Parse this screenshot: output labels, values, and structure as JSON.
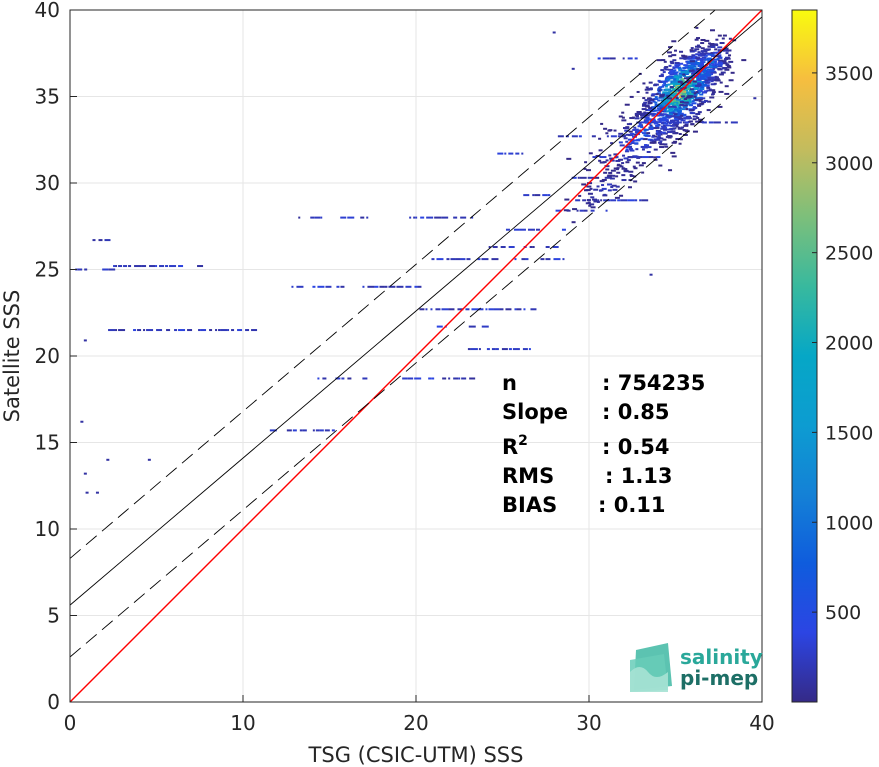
{
  "chart_data": {
    "type": "heatmap",
    "xlabel": "TSG (CSIC-UTM) SSS",
    "ylabel": "Satellite SSS",
    "xlim": [
      0,
      40
    ],
    "ylim": [
      0,
      40
    ],
    "x_ticks": [
      0,
      10,
      20,
      30,
      40
    ],
    "y_ticks": [
      0,
      5,
      10,
      15,
      20,
      25,
      30,
      35,
      40
    ],
    "grid": true,
    "colorbar": {
      "range": [
        0,
        3850
      ],
      "ticks": [
        500,
        1000,
        1500,
        2000,
        2500,
        3000,
        3500
      ],
      "colormap": "parula"
    },
    "lines": [
      {
        "kind": "identity",
        "color": "#ff0000",
        "slope": 1.0,
        "intercept": 0.0,
        "style": "solid"
      },
      {
        "kind": "regression",
        "color": "#000000",
        "slope": 0.85,
        "intercept": 5.6,
        "style": "solid"
      },
      {
        "kind": "regression-upper",
        "color": "#000000",
        "slope": 0.85,
        "intercept": 8.3,
        "style": "dashed"
      },
      {
        "kind": "regression-lower",
        "color": "#000000",
        "slope": 0.85,
        "intercept": 2.6,
        "style": "dashed"
      }
    ],
    "density_clusters": [
      {
        "x": 35.2,
        "y": 35.4,
        "sx": 1.1,
        "sy": 1.5,
        "n": 900,
        "peak": 3700
      },
      {
        "x": 33.2,
        "y": 33.0,
        "sx": 1.5,
        "sy": 1.3,
        "n": 260,
        "peak": 800
      },
      {
        "x": 36.8,
        "y": 36.8,
        "sx": 0.7,
        "sy": 1.0,
        "n": 160,
        "peak": 1200
      },
      {
        "x": 31.0,
        "y": 29.8,
        "sx": 1.0,
        "sy": 0.7,
        "n": 60,
        "peak": 300
      }
    ],
    "streaks": [
      {
        "x0": 0.3,
        "x1": 2.3,
        "y": 25.0
      },
      {
        "x0": 1.3,
        "x1": 2.3,
        "y": 26.7
      },
      {
        "x0": 2.2,
        "x1": 7.8,
        "y": 25.2
      },
      {
        "x0": 2.2,
        "x1": 10.5,
        "y": 21.5
      },
      {
        "x0": 12.5,
        "x1": 17.2,
        "y": 28.0
      },
      {
        "x0": 19.2,
        "x1": 23.2,
        "y": 28.0
      },
      {
        "x0": 12.8,
        "x1": 20.2,
        "y": 24.0
      },
      {
        "x0": 10.8,
        "x1": 15.2,
        "y": 15.7
      },
      {
        "x0": 14.3,
        "x1": 17.2,
        "y": 18.7
      },
      {
        "x0": 19.2,
        "x1": 23.5,
        "y": 18.7
      },
      {
        "x0": 20.2,
        "x1": 29.2,
        "y": 25.6
      },
      {
        "x0": 20.2,
        "x1": 26.7,
        "y": 22.7
      },
      {
        "x0": 21.2,
        "x1": 24.2,
        "y": 21.7
      },
      {
        "x0": 23.0,
        "x1": 26.7,
        "y": 20.4
      },
      {
        "x0": 26.2,
        "x1": 27.7,
        "y": 29.3
      },
      {
        "x0": 24.2,
        "x1": 28.2,
        "y": 26.3
      },
      {
        "x0": 25.2,
        "x1": 28.5,
        "y": 27.3
      },
      {
        "x0": 27.2,
        "x1": 31.2,
        "y": 28.4
      },
      {
        "x0": 29.2,
        "x1": 33.2,
        "y": 29.0
      },
      {
        "x0": 24.7,
        "x1": 26.3,
        "y": 31.7
      },
      {
        "x0": 28.2,
        "x1": 32.2,
        "y": 32.7
      },
      {
        "x0": 30.5,
        "x1": 32.8,
        "y": 37.2
      },
      {
        "x0": 30.2,
        "x1": 34.0,
        "y": 31.5
      },
      {
        "x0": 29.0,
        "x1": 31.5,
        "y": 30.3
      },
      {
        "x0": 34.5,
        "x1": 38.5,
        "y": 33.5
      }
    ],
    "isolated_points": [
      {
        "x": 0.6,
        "y": 16.2
      },
      {
        "x": 0.8,
        "y": 13.2
      },
      {
        "x": 0.9,
        "y": 12.1
      },
      {
        "x": 1.5,
        "y": 12.1
      },
      {
        "x": 2.1,
        "y": 14.0
      },
      {
        "x": 4.5,
        "y": 14.0
      },
      {
        "x": 0.8,
        "y": 20.9
      },
      {
        "x": 33.5,
        "y": 24.7
      },
      {
        "x": 29.0,
        "y": 36.6
      },
      {
        "x": 27.9,
        "y": 38.7
      },
      {
        "x": 39.5,
        "y": 34.9
      }
    ],
    "stats": [
      {
        "label": "n",
        "value": ": 754235"
      },
      {
        "label": "Slope",
        "value": ": 0.85"
      },
      {
        "label": "R",
        "sup": "2",
        "value": ": 0.54"
      },
      {
        "label": "RMS",
        "value": ": 1.13"
      },
      {
        "label": "BIAS",
        "value": ": 0.11"
      }
    ]
  },
  "logo": {
    "line1": "salinity",
    "line2": "pi-mep",
    "color1": "#2aa89a",
    "color2": "#1d6f66"
  }
}
